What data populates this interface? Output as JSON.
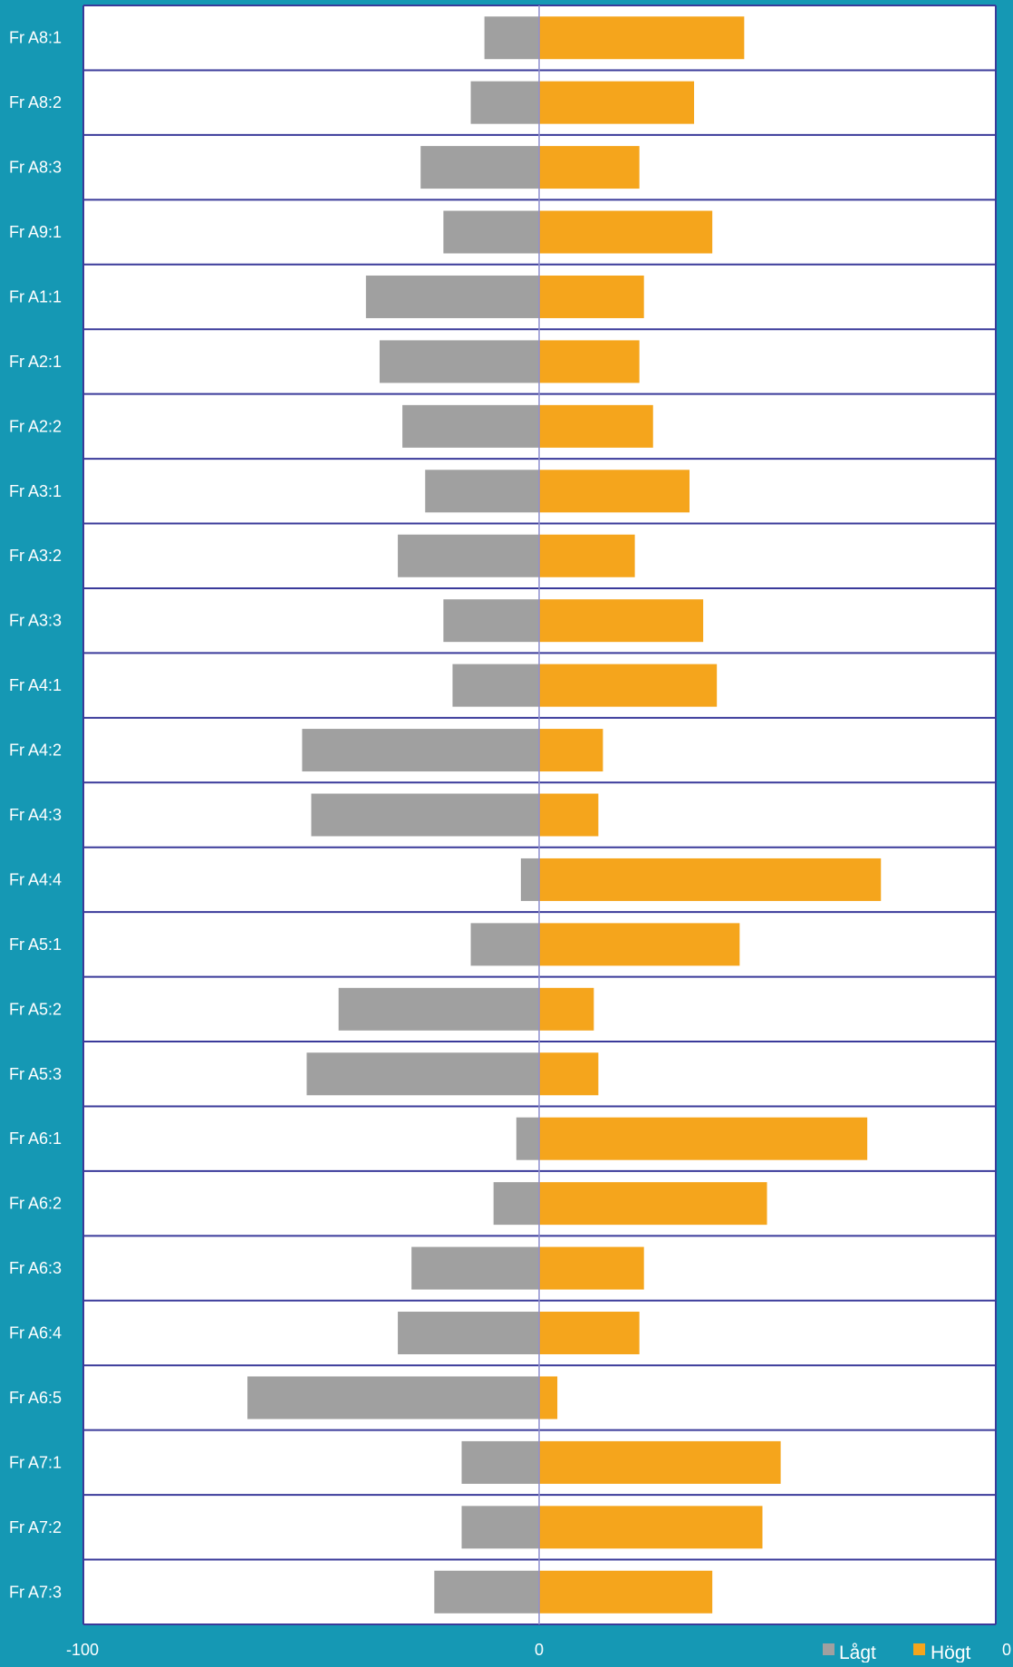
{
  "chart_data": {
    "type": "bar",
    "orientation": "horizontal",
    "diverging": true,
    "categories": [
      "Fr A8:1",
      "Fr A8:2",
      "Fr A8:3",
      "Fr A9:1",
      "Fr A1:1",
      "Fr A2:1",
      "Fr A2:2",
      "Fr A3:1",
      "Fr A3:2",
      "Fr A3:3",
      "Fr A4:1",
      "Fr A4:2",
      "Fr A4:3",
      "Fr A4:4",
      "Fr A5:1",
      "Fr A5:2",
      "Fr A5:3",
      "Fr A6:1",
      "Fr A6:2",
      "Fr A6:3",
      "Fr A6:4",
      "Fr A6:5",
      "Fr A7:1",
      "Fr A7:2",
      "Fr A7:3"
    ],
    "series": [
      {
        "name": "Lågt",
        "values": [
          -12,
          -15,
          -26,
          -21,
          -38,
          -35,
          -30,
          -25,
          -31,
          -21,
          -19,
          -52,
          -50,
          -4,
          -15,
          -44,
          -51,
          -5,
          -10,
          -28,
          -31,
          -64,
          -17,
          -17,
          -23
        ]
      },
      {
        "name": "Högt",
        "values": [
          45,
          34,
          22,
          38,
          23,
          22,
          25,
          33,
          21,
          36,
          39,
          14,
          13,
          75,
          44,
          12,
          13,
          72,
          50,
          23,
          22,
          4,
          53,
          49,
          38
        ]
      }
    ],
    "colors": {
      "Lågt": "#a0a0a0",
      "Högt": "#f5a51c",
      "row_border": "#3a3a9a",
      "zero_line": "#8f8fd0",
      "plot_bg": "#ffffff",
      "page_bg": "#1598b4"
    },
    "xlim": [
      -100,
      100
    ],
    "x_tick_labels": [
      "-100",
      "0",
      "0"
    ],
    "legend": {
      "position": "bottom-right",
      "entries": [
        "Lågt",
        "Högt"
      ]
    },
    "title": "",
    "xlabel": "",
    "ylabel": "",
    "grid": false
  }
}
